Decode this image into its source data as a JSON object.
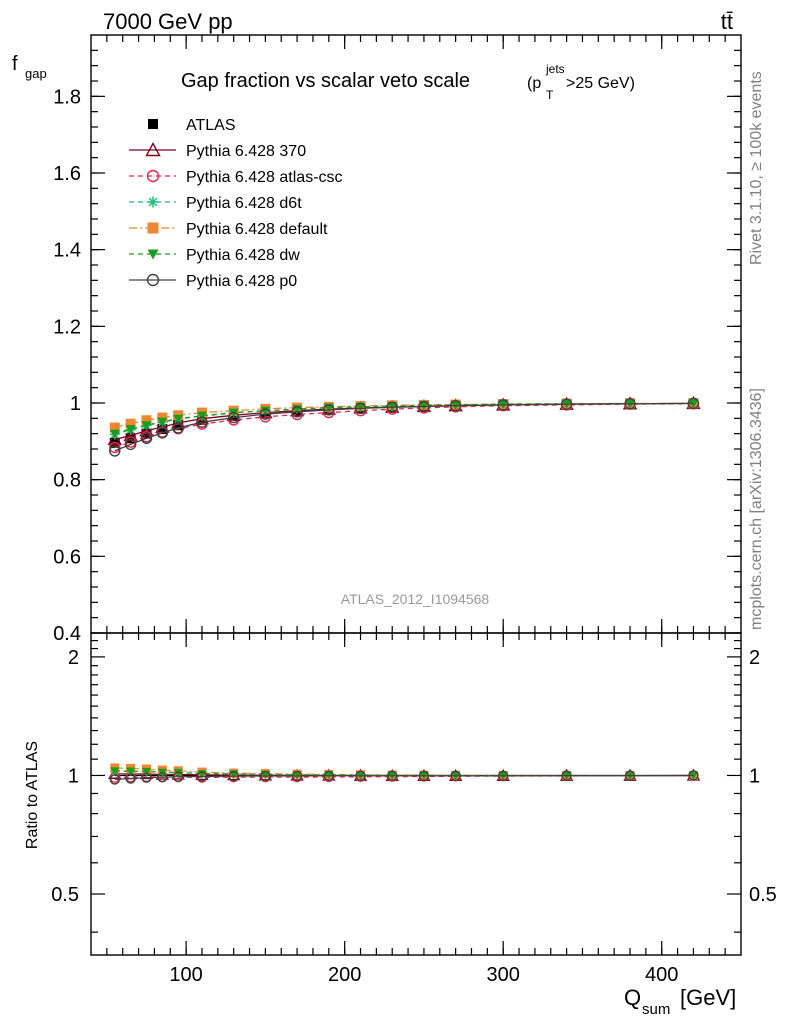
{
  "header": {
    "energy_label": "7000 GeV pp",
    "process_label": "tt̄"
  },
  "side_labels": {
    "rivet": "Rivet 3.1.10, ≥ 100k events",
    "mcplots": "mcplots.cern.ch [arXiv:1306.3436]"
  },
  "chart_data": [
    {
      "type": "line",
      "panel": "main",
      "title_main": "Gap fraction vs scalar veto scale",
      "title_cut_pre": "(p",
      "title_cut_sup": "jets",
      "title_cut_sub": "T",
      "title_cut_post": ">25 GeV)",
      "ylabel_main": "f",
      "ylabel_sub": "gap",
      "watermark": "ATLAS_2012_I1094568",
      "xlim": [
        40,
        450
      ],
      "ylim": [
        0.4,
        1.96
      ],
      "yticks": [
        "0.4",
        "0.6",
        "0.8",
        "1",
        "1.2",
        "1.4",
        "1.6",
        "1.8"
      ],
      "grid": false,
      "legend_position": "top-left",
      "x": [
        55,
        65,
        75,
        85,
        95,
        110,
        130,
        150,
        170,
        190,
        210,
        230,
        250,
        270,
        300,
        340,
        380,
        420
      ],
      "series": [
        {
          "name": "ATLAS",
          "color": "#000000",
          "marker": "square-filled",
          "line": "none",
          "values": [
            0.896,
            0.908,
            0.92,
            0.932,
            0.942,
            0.956,
            0.966,
            0.974,
            0.98,
            0.984,
            0.988,
            0.991,
            0.993,
            0.995,
            0.997,
            0.998,
            0.999,
            0.999
          ]
        },
        {
          "name": "Pythia 6.428 370",
          "color": "#800020",
          "marker": "triangle-open",
          "line": "solid",
          "values": [
            0.905,
            0.915,
            0.928,
            0.937,
            0.948,
            0.959,
            0.968,
            0.975,
            0.98,
            0.984,
            0.987,
            0.989,
            0.991,
            0.993,
            0.995,
            0.997,
            0.998,
            0.999
          ]
        },
        {
          "name": "Pythia 6.428 atlas-csc",
          "color": "#e8254a",
          "marker": "circle-open",
          "line": "dashed",
          "values": [
            0.884,
            0.898,
            0.912,
            0.924,
            0.933,
            0.945,
            0.956,
            0.964,
            0.97,
            0.975,
            0.98,
            0.984,
            0.987,
            0.99,
            0.993,
            0.995,
            0.997,
            0.998
          ]
        },
        {
          "name": "Pythia 6.428 d6t",
          "color": "#17c07a",
          "marker": "star",
          "line": "dashed",
          "values": [
            0.918,
            0.93,
            0.941,
            0.95,
            0.958,
            0.966,
            0.974,
            0.98,
            0.984,
            0.988,
            0.99,
            0.992,
            0.994,
            0.995,
            0.997,
            0.998,
            0.998,
            0.999
          ]
        },
        {
          "name": "Pythia 6.428 default",
          "color": "#f28530",
          "marker": "square-filled",
          "line": "dashdot",
          "values": [
            0.936,
            0.946,
            0.955,
            0.962,
            0.968,
            0.975,
            0.98,
            0.985,
            0.988,
            0.99,
            0.992,
            0.994,
            0.995,
            0.996,
            0.997,
            0.998,
            0.999,
            0.999
          ]
        },
        {
          "name": "Pythia 6.428 dw",
          "color": "#14a01e",
          "marker": "triangle-down-filled",
          "line": "dashed",
          "values": [
            0.92,
            0.932,
            0.942,
            0.951,
            0.959,
            0.967,
            0.975,
            0.98,
            0.984,
            0.988,
            0.99,
            0.992,
            0.994,
            0.995,
            0.997,
            0.998,
            0.998,
            0.999
          ]
        },
        {
          "name": "Pythia 6.428 p0",
          "color": "#404040",
          "marker": "circle-open",
          "line": "solid",
          "values": [
            0.875,
            0.892,
            0.908,
            0.922,
            0.935,
            0.95,
            0.962,
            0.971,
            0.977,
            0.982,
            0.986,
            0.989,
            0.991,
            0.993,
            0.995,
            0.997,
            0.998,
            0.999
          ]
        }
      ]
    },
    {
      "type": "line",
      "panel": "ratio",
      "ylabel": "Ratio to ATLAS",
      "xlabel_main": "Q",
      "xlabel_sub": "sum",
      "xlabel_unit": "[GeV]",
      "xlim": [
        40,
        450
      ],
      "ylim": [
        0.35,
        2.3
      ],
      "yticks": [
        "0.5",
        "1",
        "2"
      ],
      "xticks": [
        "100",
        "200",
        "300",
        "400"
      ],
      "grid": false,
      "x": [
        55,
        65,
        75,
        85,
        95,
        110,
        130,
        150,
        170,
        190,
        210,
        230,
        250,
        270,
        300,
        340,
        380,
        420
      ],
      "series": [
        {
          "name": "ATLAS",
          "color": "#000000",
          "values": [
            1,
            1,
            1,
            1,
            1,
            1,
            1,
            1,
            1,
            1,
            1,
            1,
            1,
            1,
            1,
            1,
            1,
            1
          ]
        },
        {
          "name": "Pythia 6.428 370",
          "color": "#800020",
          "values": [
            1.01,
            1.008,
            1.009,
            1.005,
            1.006,
            1.003,
            1.002,
            1.001,
            1.0,
            1.0,
            0.999,
            0.998,
            0.998,
            0.998,
            0.998,
            0.999,
            0.999,
            1.0
          ]
        },
        {
          "name": "Pythia 6.428 atlas-csc",
          "color": "#e8254a",
          "values": [
            0.987,
            0.989,
            0.991,
            0.991,
            0.99,
            0.988,
            0.99,
            0.99,
            0.99,
            0.991,
            0.992,
            0.993,
            0.994,
            0.995,
            0.996,
            0.997,
            0.998,
            0.999
          ]
        },
        {
          "name": "Pythia 6.428 d6t",
          "color": "#17c07a",
          "values": [
            1.025,
            1.024,
            1.023,
            1.019,
            1.017,
            1.01,
            1.008,
            1.006,
            1.004,
            1.004,
            1.002,
            1.001,
            1.001,
            1.0,
            1.0,
            1.0,
            0.999,
            1.0
          ]
        },
        {
          "name": "Pythia 6.428 default",
          "color": "#f28530",
          "values": [
            1.045,
            1.042,
            1.038,
            1.032,
            1.028,
            1.02,
            1.014,
            1.011,
            1.008,
            1.006,
            1.004,
            1.003,
            1.002,
            1.001,
            1.0,
            1.0,
            1.0,
            1.0
          ]
        },
        {
          "name": "Pythia 6.428 dw",
          "color": "#14a01e",
          "values": [
            1.027,
            1.026,
            1.024,
            1.02,
            1.018,
            1.011,
            1.009,
            1.006,
            1.004,
            1.004,
            1.002,
            1.001,
            1.001,
            1.0,
            1.0,
            1.0,
            0.999,
            1.0
          ]
        },
        {
          "name": "Pythia 6.428 p0",
          "color": "#404040",
          "values": [
            0.977,
            0.982,
            0.987,
            0.989,
            0.993,
            0.994,
            0.996,
            0.997,
            0.997,
            0.998,
            0.998,
            0.998,
            0.998,
            0.998,
            0.998,
            0.999,
            0.999,
            1.0
          ]
        }
      ]
    }
  ]
}
